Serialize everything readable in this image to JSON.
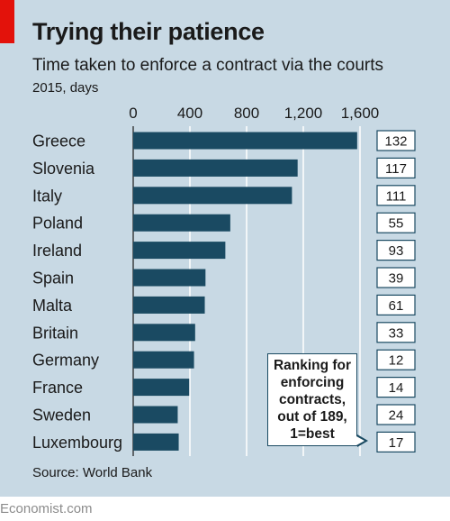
{
  "header": {
    "title": "Trying their patience",
    "subtitle": "Time taken to enforce a contract via the courts",
    "unit_note": "2015, days"
  },
  "callout": {
    "text": "Ranking for enforcing contracts, out of 189, 1=best"
  },
  "footer": {
    "source": "Source: World Bank",
    "brand": "Economist.com"
  },
  "colors": {
    "bar": "#1a4a62",
    "background": "#c8d9e4",
    "accent": "#e3120b"
  },
  "chart_data": {
    "type": "bar",
    "orientation": "horizontal",
    "categories": [
      "Greece",
      "Slovenia",
      "Italy",
      "Poland",
      "Ireland",
      "Spain",
      "Malta",
      "Britain",
      "Germany",
      "France",
      "Sweden",
      "Luxembourg"
    ],
    "values": [
      1580,
      1160,
      1120,
      685,
      650,
      510,
      505,
      437,
      429,
      395,
      314,
      321
    ],
    "ranks": [
      "132",
      "117",
      "111",
      "55",
      "93",
      "39",
      "61",
      "33",
      "12",
      "14",
      "24",
      "17"
    ],
    "xlim": [
      0,
      1600
    ],
    "xticks": [
      "0",
      "400",
      "800",
      "1,200",
      "1,600"
    ],
    "grid": true
  }
}
